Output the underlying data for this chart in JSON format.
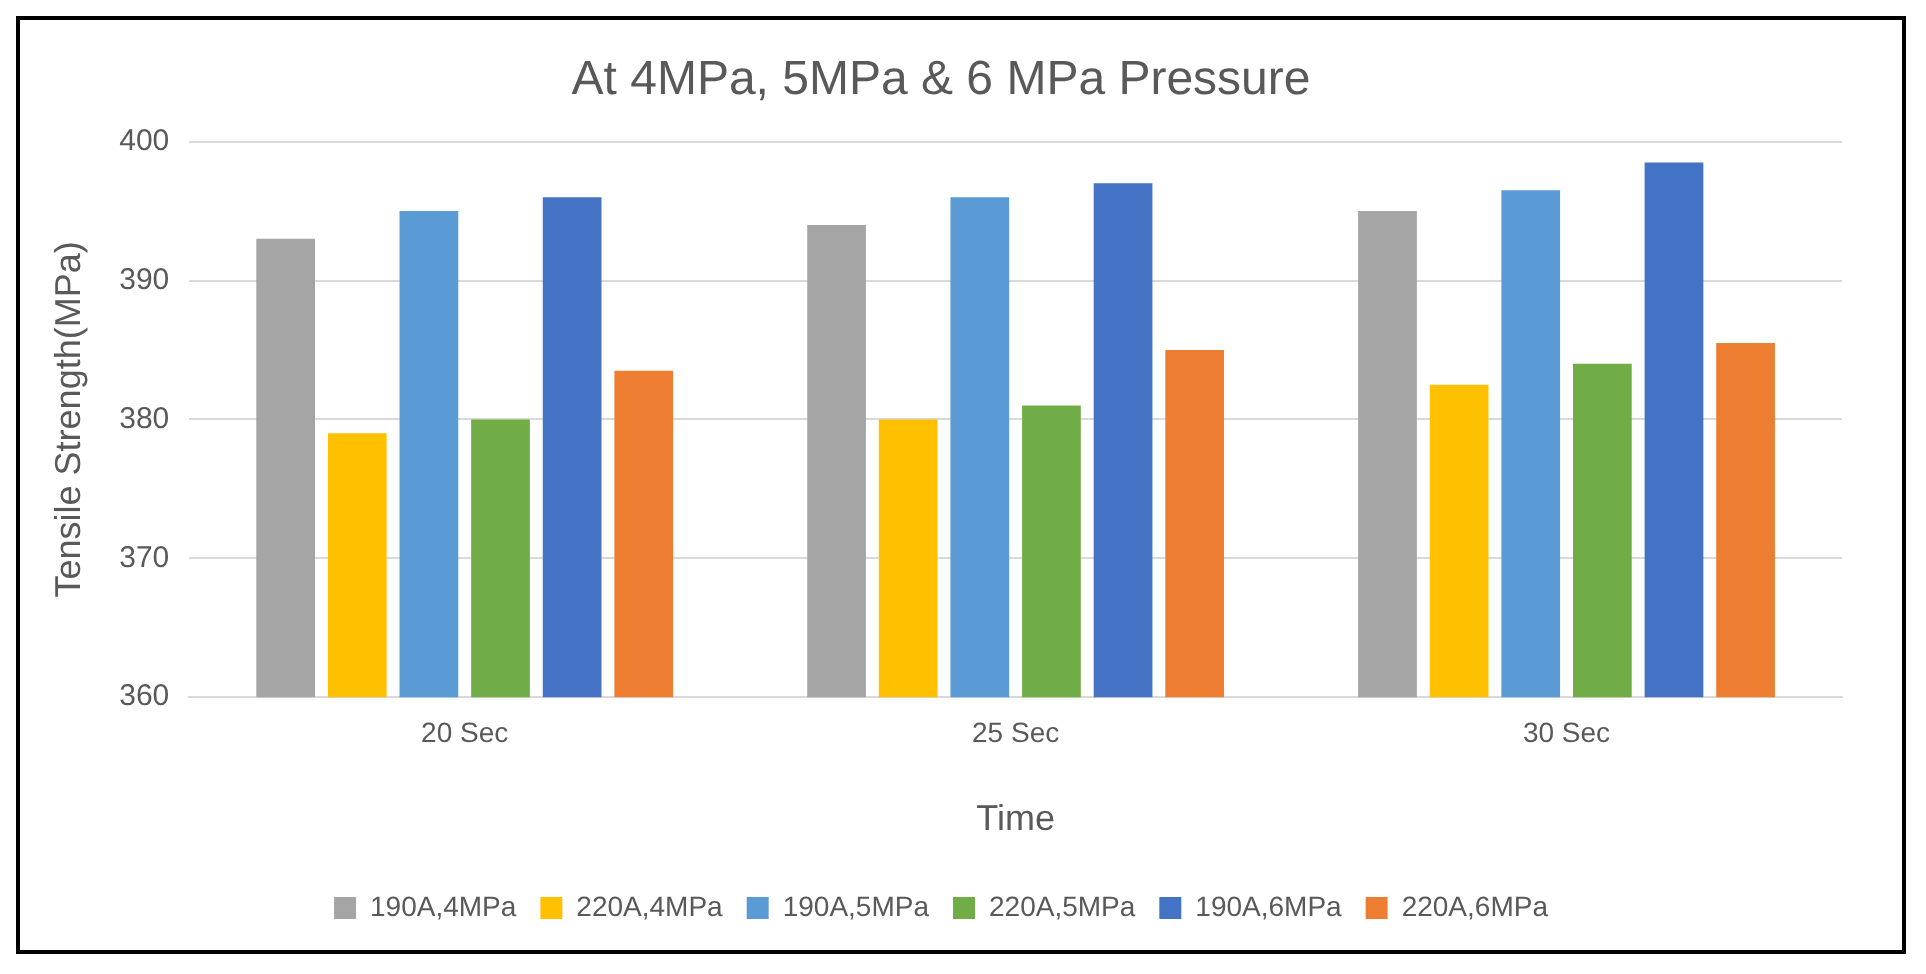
{
  "chart_data": {
    "type": "bar",
    "title": "At 4MPa, 5MPa & 6 MPa Pressure",
    "xlabel": "Time",
    "ylabel": "Tensile Strength(MPa)",
    "categories": [
      "20 Sec",
      "25 Sec",
      "30 Sec"
    ],
    "series": [
      {
        "name": "190A,4MPa",
        "color": "#a5a5a5",
        "values": [
          393,
          394,
          395
        ]
      },
      {
        "name": "220A,4MPa",
        "color": "#ffc000",
        "values": [
          379,
          380,
          382.5
        ]
      },
      {
        "name": "190A,5MPa",
        "color": "#5b9bd5",
        "values": [
          395,
          396,
          396.5
        ]
      },
      {
        "name": "220A,5MPa",
        "color": "#70ad47",
        "values": [
          380,
          381,
          384
        ]
      },
      {
        "name": "190A,6MPa",
        "color": "#4472c4",
        "values": [
          396,
          397,
          398.5
        ]
      },
      {
        "name": "220A,6MPa",
        "color": "#ed7d31",
        "values": [
          383.5,
          385,
          385.5
        ]
      }
    ],
    "ylim": [
      360,
      400
    ],
    "yticks": [
      360,
      370,
      380,
      390,
      400
    ],
    "grid": "y",
    "legend": "bottom"
  }
}
